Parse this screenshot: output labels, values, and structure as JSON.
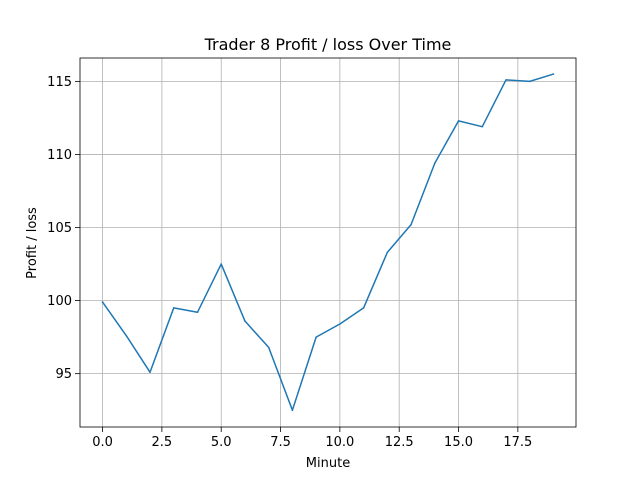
{
  "chart_data": {
    "type": "line",
    "title": "Trader 8 Profit / loss Over Time",
    "xlabel": "Minute",
    "ylabel": "Profit / loss",
    "xlim": [
      -0.95,
      19.95
    ],
    "ylim": [
      91.35,
      116.6
    ],
    "grid": true,
    "legend": "none",
    "x_ticks": [
      0.0,
      2.5,
      5.0,
      7.5,
      10.0,
      12.5,
      15.0,
      17.5
    ],
    "x_tick_labels": [
      "0.0",
      "2.5",
      "5.0",
      "7.5",
      "10.0",
      "12.5",
      "15.0",
      "17.5"
    ],
    "y_ticks": [
      95,
      100,
      105,
      110,
      115
    ],
    "y_tick_labels": [
      "95",
      "100",
      "105",
      "110",
      "115"
    ],
    "series": [
      {
        "x": [
          0,
          1,
          2,
          3,
          4,
          5,
          6,
          7,
          8,
          9,
          10,
          11,
          12,
          13,
          14,
          15,
          16,
          17,
          18,
          19
        ],
        "values": [
          99.9,
          97.6,
          95.1,
          99.5,
          99.2,
          102.5,
          98.6,
          96.8,
          92.5,
          97.5,
          98.4,
          99.5,
          103.3,
          105.2,
          109.4,
          112.3,
          111.9,
          115.1,
          115.0,
          115.5
        ]
      }
    ],
    "colors": {
      "line": "#1f77b4",
      "grid": "#b0b0b0",
      "axes": "#000000"
    }
  }
}
